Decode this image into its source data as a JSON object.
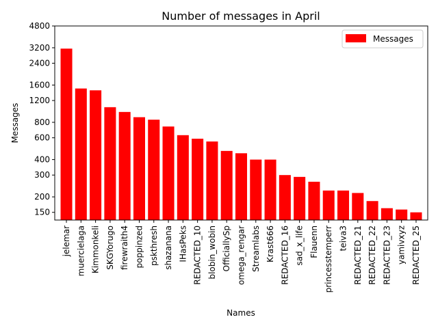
{
  "chart_data": {
    "type": "bar",
    "title": "Number of messages in April",
    "xlabel": "Names",
    "ylabel": "Messages",
    "y_scale": "log",
    "ylim": [
      130,
      4800
    ],
    "yticks": [
      150,
      200,
      300,
      400,
      600,
      800,
      1200,
      1600,
      2400,
      3200,
      4800
    ],
    "legend_position": "top-right",
    "grid": false,
    "bar_color": "#ff0000",
    "categories": [
      "jelemar",
      "muercielaga",
      "Kimmonkeli",
      "SKGYorugo",
      "firewraith4",
      "poppinzed",
      "pskthresh",
      "shazanana",
      "IHasPeks",
      "REDACTED_10",
      "blobin_wobin",
      "OfficiallySp",
      "omega_rengar",
      "Streamlabs",
      "Krast666",
      "REDACTED_16",
      "sad_x_life",
      "Flauenn",
      "princesstemperr",
      "teiva3",
      "REDACTED_21",
      "REDACTED_22",
      "REDACTED_23",
      "yamivxyz",
      "REDACTED_25"
    ],
    "series": [
      {
        "name": "Messages",
        "values": [
          3150,
          1500,
          1450,
          1060,
          970,
          880,
          840,
          740,
          630,
          590,
          560,
          470,
          450,
          400,
          400,
          300,
          290,
          265,
          225,
          225,
          215,
          185,
          162,
          158,
          150
        ]
      }
    ]
  }
}
